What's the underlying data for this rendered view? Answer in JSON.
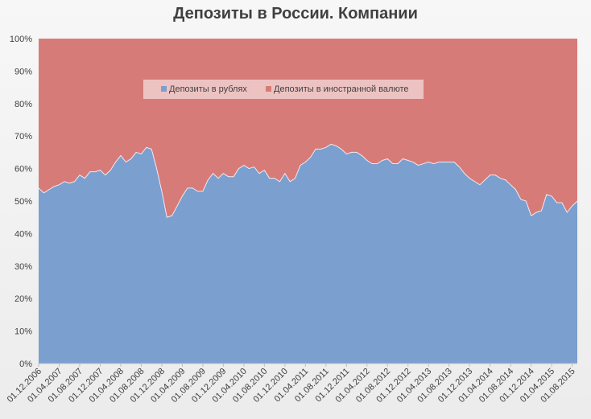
{
  "chart_data": {
    "type": "area",
    "stacked": true,
    "percent": true,
    "title": "Депозиты в России. Компании",
    "xlabel": "",
    "ylabel": "",
    "ylim": [
      0,
      100
    ],
    "y_ticks": [
      "0%",
      "10%",
      "20%",
      "30%",
      "40%",
      "50%",
      "60%",
      "70%",
      "80%",
      "90%",
      "100%"
    ],
    "x_tick_labels": [
      "01.12.2006",
      "01.04.2007",
      "01.08.2007",
      "01.12.2007",
      "01.04.2008",
      "01.08.2008",
      "01.12.2008",
      "01.04.2009",
      "01.08.2009",
      "01.12.2009",
      "01.04.2010",
      "01.08.2010",
      "01.12.2010",
      "01.04.2011",
      "01.08.2011",
      "01.12.2011",
      "01.04.2012",
      "01.08.2012",
      "01.12.2012",
      "01.04.2013",
      "01.08.2013",
      "01.12.2013",
      "01.04.2014",
      "01.08.2014",
      "01.12.2014",
      "01.04.2015",
      "01.08.2015"
    ],
    "legend_position": "top",
    "series": [
      {
        "name": "Депозиты в рублях",
        "color": "#7b9fcf",
        "values": [
          54.0,
          52.5,
          53.5,
          54.5,
          55.0,
          56.0,
          55.5,
          56.0,
          58.0,
          57.0,
          59.0,
          59.0,
          59.5,
          58.0,
          59.5,
          62.0,
          64.0,
          62.0,
          63.0,
          65.0,
          64.5,
          66.5,
          66.0,
          60.0,
          53.0,
          45.0,
          45.5,
          48.5,
          51.5,
          54.0,
          54.0,
          53.0,
          53.0,
          56.5,
          58.5,
          57.0,
          58.5,
          57.5,
          57.5,
          60.0,
          61.0,
          60.0,
          60.5,
          58.5,
          59.5,
          57.0,
          57.0,
          56.0,
          58.5,
          56.0,
          57.0,
          61.0,
          62.0,
          63.5,
          66.0,
          66.0,
          66.5,
          67.5,
          67.0,
          66.0,
          64.5,
          65.0,
          65.0,
          64.0,
          62.5,
          61.5,
          61.5,
          62.5,
          63.0,
          61.5,
          61.5,
          63.0,
          62.5,
          62.0,
          61.0,
          61.5,
          62.0,
          61.5,
          62.0,
          62.0,
          62.0,
          62.0,
          60.5,
          58.5,
          57.0,
          56.0,
          55.0,
          56.5,
          58.0,
          58.0,
          57.0,
          56.5,
          55.0,
          53.5,
          50.5,
          50.0,
          45.5,
          46.5,
          47.0,
          52.0,
          51.5,
          49.5,
          49.5,
          46.5,
          48.5,
          50.0
        ]
      },
      {
        "name": "Депозиты в иностранной валюте",
        "color": "#d77b78",
        "values": []
      }
    ]
  }
}
